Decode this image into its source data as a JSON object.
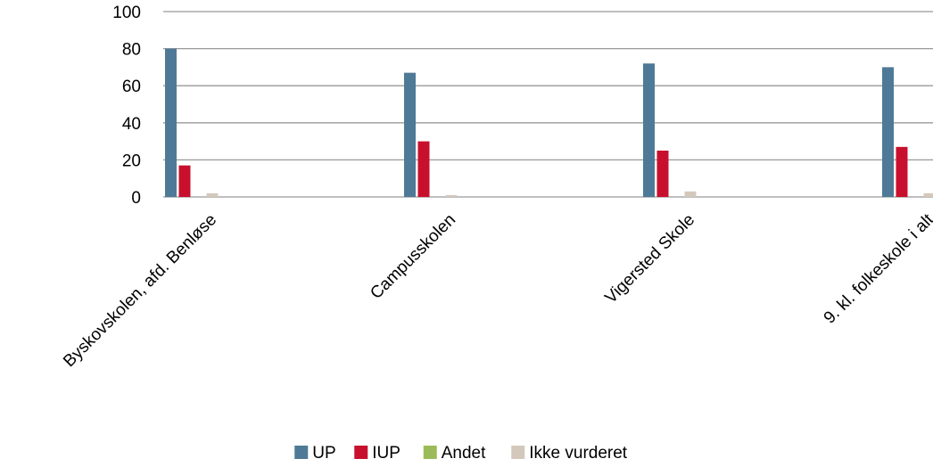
{
  "chart_data": {
    "type": "bar",
    "categories": [
      "Byskovskolen, afd. Benløse",
      "Campusskolen",
      "Vigersted Skole",
      "9. kl. folkeskole i alt"
    ],
    "series": [
      {
        "name": "UP",
        "color": "#4e7a97",
        "values": [
          80,
          67,
          72,
          70
        ]
      },
      {
        "name": "IUP",
        "color": "#c8102e",
        "values": [
          17,
          30,
          25,
          27
        ]
      },
      {
        "name": "Andet",
        "color": "#9bbb59",
        "values": [
          0,
          0,
          0,
          0
        ]
      },
      {
        "name": "Ikke vurderet",
        "color": "#d4c8bc",
        "values": [
          2,
          1,
          3,
          2
        ]
      }
    ],
    "ylim": [
      0,
      100
    ],
    "yticks": [
      0,
      20,
      40,
      60,
      80,
      100
    ],
    "grid": true,
    "legend": "bottom"
  }
}
